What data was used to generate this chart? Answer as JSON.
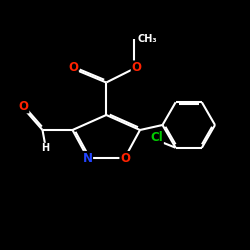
{
  "background_color": "#000000",
  "bond_color": "#ffffff",
  "bond_width": 1.5,
  "atom_colors": {
    "O": "#ff2200",
    "N": "#2244ff",
    "Cl": "#00cc00",
    "C": "#ffffff"
  },
  "font_size_atom": 8.5
}
